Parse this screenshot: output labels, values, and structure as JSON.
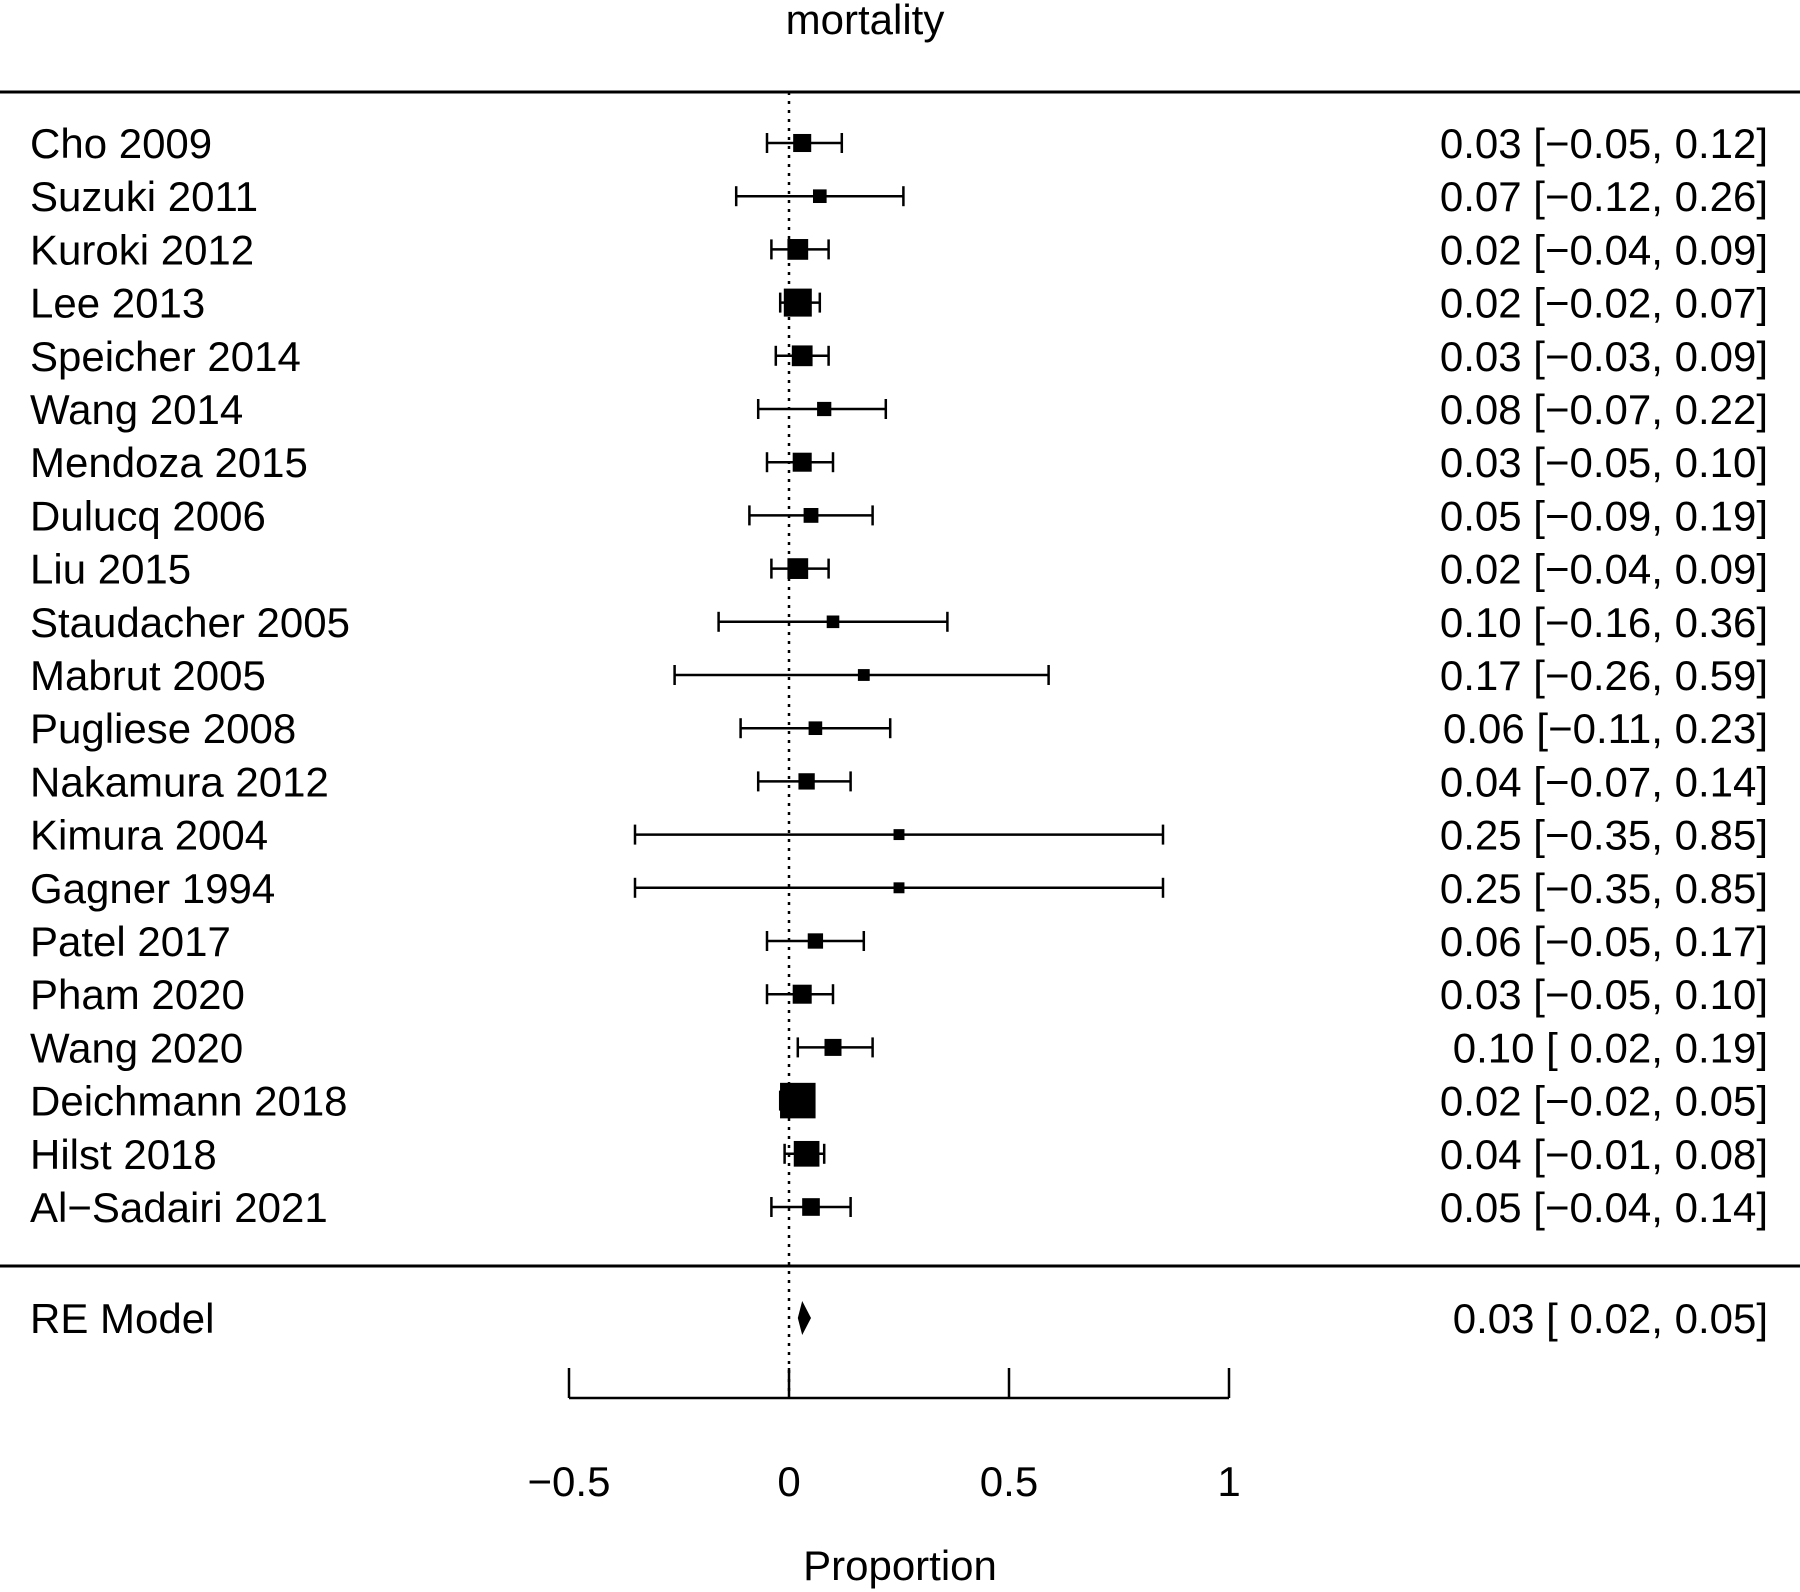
{
  "chart_data": {
    "type": "forest",
    "title": "mortality",
    "xlabel": "Proportion",
    "xlim": [
      -0.5,
      1
    ],
    "xticks": [
      -0.5,
      0,
      0.5,
      1
    ],
    "xtick_labels": [
      "−0.5",
      "0",
      "0.5",
      "1"
    ],
    "reference_line": 0,
    "colors": {
      "ink": "#000000",
      "background": "#ffffff"
    },
    "studies": [
      {
        "name": "Cho 2009",
        "est": 0.03,
        "lo": -0.05,
        "hi": 0.12,
        "weight": 0.3,
        "label": "0.03 [−0.05, 0.12]"
      },
      {
        "name": "Suzuki 2011",
        "est": 0.07,
        "lo": -0.12,
        "hi": 0.26,
        "weight": 0.12,
        "label": "0.07 [−0.12, 0.26]"
      },
      {
        "name": "Kuroki 2012",
        "est": 0.02,
        "lo": -0.04,
        "hi": 0.09,
        "weight": 0.45,
        "label": "0.02 [−0.04, 0.09]"
      },
      {
        "name": "Lee 2013",
        "est": 0.02,
        "lo": -0.02,
        "hi": 0.07,
        "weight": 1.0,
        "label": "0.02 [−0.02, 0.07]"
      },
      {
        "name": "Speicher 2014",
        "est": 0.03,
        "lo": -0.03,
        "hi": 0.09,
        "weight": 0.45,
        "label": "0.03 [−0.03, 0.09]"
      },
      {
        "name": "Wang 2014",
        "est": 0.08,
        "lo": -0.07,
        "hi": 0.22,
        "weight": 0.14,
        "label": "0.08 [−0.07, 0.22]"
      },
      {
        "name": "Mendoza 2015",
        "est": 0.03,
        "lo": -0.05,
        "hi": 0.1,
        "weight": 0.35,
        "label": "0.03 [−0.05, 0.10]"
      },
      {
        "name": "Dulucq 2006",
        "est": 0.05,
        "lo": -0.09,
        "hi": 0.19,
        "weight": 0.16,
        "label": "0.05 [−0.09, 0.19]"
      },
      {
        "name": "Liu 2015",
        "est": 0.02,
        "lo": -0.04,
        "hi": 0.09,
        "weight": 0.45,
        "label": "0.02 [−0.04, 0.09]"
      },
      {
        "name": "Staudacher 2005",
        "est": 0.1,
        "lo": -0.16,
        "hi": 0.36,
        "weight": 0.09,
        "label": "0.10 [−0.16, 0.36]"
      },
      {
        "name": "Mabrut 2005",
        "est": 0.17,
        "lo": -0.26,
        "hi": 0.59,
        "weight": 0.07,
        "label": "0.17 [−0.26, 0.59]"
      },
      {
        "name": "Pugliese 2008",
        "est": 0.06,
        "lo": -0.11,
        "hi": 0.23,
        "weight": 0.12,
        "label": "0.06 [−0.11, 0.23]"
      },
      {
        "name": "Nakamura 2012",
        "est": 0.04,
        "lo": -0.07,
        "hi": 0.14,
        "weight": 0.22,
        "label": "0.04 [−0.07, 0.14]"
      },
      {
        "name": "Kimura 2004",
        "est": 0.25,
        "lo": -0.35,
        "hi": 0.85,
        "weight": 0.05,
        "label": "0.25 [−0.35, 0.85]"
      },
      {
        "name": "Gagner 1994",
        "est": 0.25,
        "lo": -0.35,
        "hi": 0.85,
        "weight": 0.05,
        "label": "0.25 [−0.35, 0.85]"
      },
      {
        "name": "Patel 2017",
        "est": 0.06,
        "lo": -0.05,
        "hi": 0.17,
        "weight": 0.18,
        "label": "0.06 [−0.05, 0.17]"
      },
      {
        "name": "Pham 2020",
        "est": 0.03,
        "lo": -0.05,
        "hi": 0.1,
        "weight": 0.35,
        "label": "0.03 [−0.05, 0.10]"
      },
      {
        "name": "Wang 2020",
        "est": 0.1,
        "lo": 0.02,
        "hi": 0.19,
        "weight": 0.25,
        "label": "0.10 [ 0.02, 0.19]"
      },
      {
        "name": "Deichmann 2018",
        "est": 0.02,
        "lo": -0.02,
        "hi": 0.05,
        "weight": 1.8,
        "label": "0.02 [−0.02, 0.05]"
      },
      {
        "name": "Hilst 2018",
        "est": 0.04,
        "lo": -0.01,
        "hi": 0.08,
        "weight": 0.8,
        "label": "0.04 [−0.01, 0.08]"
      },
      {
        "name": "Al−Sadairi 2021",
        "est": 0.05,
        "lo": -0.04,
        "hi": 0.14,
        "weight": 0.28,
        "label": "0.05 [−0.04, 0.14]"
      }
    ],
    "summary": {
      "name": "RE Model",
      "est": 0.03,
      "lo": 0.02,
      "hi": 0.05,
      "label": "0.03 [ 0.02, 0.05]"
    }
  }
}
